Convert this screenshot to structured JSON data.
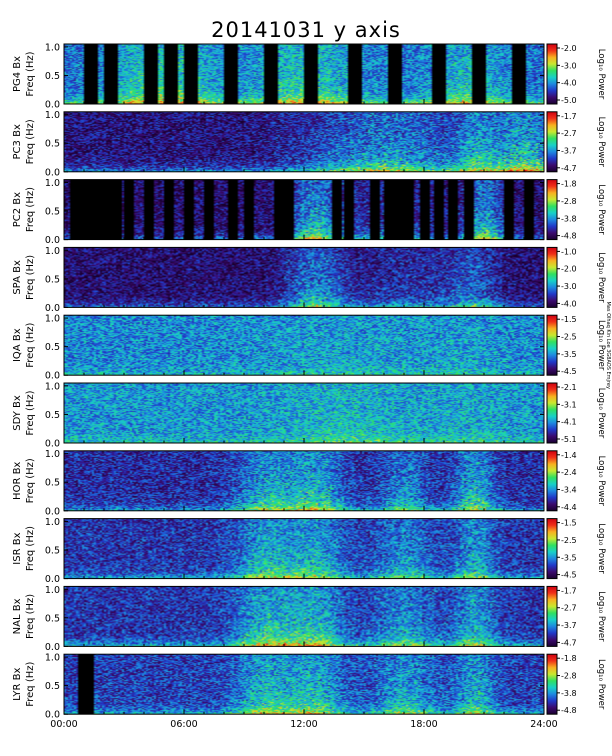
{
  "chart_data": {
    "type": "heatmap",
    "title": "20141031  y axis",
    "x_axis": {
      "ticks": [
        "00:00",
        "06:00",
        "12:00",
        "18:00",
        "24:00"
      ],
      "tick_hours": [
        0,
        6,
        12,
        18,
        24
      ],
      "range_hours": [
        0,
        24
      ]
    },
    "y_axis": {
      "ticks": [
        "0.0",
        "0.5",
        "1.0"
      ],
      "range": [
        0,
        1.05
      ],
      "unit": "Freq (Hz)"
    },
    "colorbar_label": "Log₁₀ Power",
    "colormap": [
      "#1a0030",
      "#3b0a6e",
      "#2038c8",
      "#1e88e0",
      "#18d0c8",
      "#30e060",
      "#c8e830",
      "#f8b020",
      "#f03018",
      "#d00010"
    ],
    "panels": [
      {
        "station": "PG4",
        "ylabel": "PG4 Bx",
        "freq_label": "Freq (Hz)",
        "cb_ticks": [
          "-2.0",
          "-3.0",
          "-4.0",
          "-5.0"
        ],
        "base": 0.3,
        "bursts": [
          [
            5,
            2.5,
            0.3
          ],
          [
            12,
            2.5,
            0.25
          ],
          [
            20,
            2,
            0.2
          ]
        ],
        "low_boost": 0.35,
        "gaps": [
          1.0,
          2.0,
          4.0,
          5.0,
          6.0,
          8.0,
          10.0,
          12.0,
          14.2,
          16.2,
          18.4,
          20.4,
          22.4
        ],
        "gap_w": 0.12
      },
      {
        "station": "PC3",
        "ylabel": "PC3 Bx",
        "freq_label": "Freq (Hz)",
        "cb_ticks": [
          "-1.7",
          "-2.7",
          "-3.7",
          "-4.7"
        ],
        "base": 0.12,
        "bursts": [
          [
            16,
            4,
            0.35
          ],
          [
            23,
            2,
            0.45
          ],
          [
            20.5,
            1,
            0.25
          ]
        ],
        "low_boost": 0.3,
        "gaps": [],
        "gap_w": 0
      },
      {
        "station": "PC2",
        "ylabel": "PC2 Bx",
        "freq_label": "Freq (Hz)",
        "cb_ticks": [
          "-1.8",
          "-2.8",
          "-3.8",
          "-4.8"
        ],
        "base": 0.1,
        "bursts": [
          [
            12.5,
            1.2,
            0.4
          ],
          [
            21,
            1.0,
            0.4
          ],
          [
            16,
            3,
            0.15
          ]
        ],
        "low_boost": 0.3,
        "gaps": [
          0.3,
          0.5,
          0.7,
          1.0,
          1.3,
          1.6,
          2.0,
          2.4,
          3.0,
          4.0,
          5.0,
          6.0,
          7.0,
          8.2,
          9.0,
          10.5,
          11.0,
          13.4,
          14.0,
          15.3,
          16.0,
          16.5,
          17.0,
          17.8,
          18.5,
          19.2,
          20.0,
          22.0,
          23.0
        ],
        "gap_w": 0.08
      },
      {
        "station": "SPA",
        "ylabel": "SPA Bx",
        "freq_label": "Freq (Hz)",
        "cb_ticks": [
          "-1.0",
          "-2.0",
          "-3.0",
          "-4.0"
        ],
        "base": 0.1,
        "bursts": [
          [
            12.5,
            1.5,
            0.35
          ],
          [
            17.5,
            3,
            0.15
          ],
          [
            20.5,
            1.2,
            0.22
          ]
        ],
        "low_boost": 0.25,
        "gaps": [],
        "gap_w": 0
      },
      {
        "station": "IQA",
        "ylabel": "IQA Bx",
        "freq_label": "Freq (Hz)",
        "cb_ticks": [
          "-1.5",
          "-2.5",
          "-3.5",
          "-4.5"
        ],
        "base": 0.34,
        "bursts": [
          [
            14,
            4,
            0.06
          ],
          [
            20,
            2,
            0.05
          ]
        ],
        "low_boost": 0.12,
        "gaps": [],
        "gap_w": 0
      },
      {
        "station": "SDY",
        "ylabel": "SDY Bx",
        "freq_label": "Freq (Hz)",
        "cb_ticks": [
          "-2.1",
          "-3.1",
          "-4.1",
          "-5.1"
        ],
        "base": 0.36,
        "bursts": [
          [
            14,
            3,
            0.1
          ],
          [
            20,
            2,
            0.06
          ]
        ],
        "low_boost": 0.15,
        "gaps": [],
        "gap_w": 0
      },
      {
        "station": "HOR",
        "ylabel": "HOR Bx",
        "freq_label": "Freq (Hz)",
        "cb_ticks": [
          "-1.4",
          "-2.4",
          "-3.4",
          "-4.4"
        ],
        "base": 0.18,
        "bursts": [
          [
            10,
            1.5,
            0.3
          ],
          [
            12.5,
            1.5,
            0.35
          ],
          [
            17,
            1.2,
            0.25
          ],
          [
            20.5,
            1,
            0.35
          ]
        ],
        "low_boost": 0.25,
        "gaps": [],
        "gap_w": 0
      },
      {
        "station": "ISR",
        "ylabel": "ISR Bx",
        "freq_label": "Freq (Hz)",
        "cb_ticks": [
          "-1.5",
          "-2.5",
          "-3.5",
          "-4.5"
        ],
        "base": 0.2,
        "bursts": [
          [
            10,
            1.5,
            0.3
          ],
          [
            12.5,
            1.5,
            0.3
          ],
          [
            17,
            1.5,
            0.22
          ],
          [
            20.5,
            1,
            0.28
          ]
        ],
        "low_boost": 0.25,
        "gaps": [],
        "gap_w": 0
      },
      {
        "station": "NAL",
        "ylabel": "NAL Bx",
        "freq_label": "Freq (Hz)",
        "cb_ticks": [
          "-1.7",
          "-2.7",
          "-3.7",
          "-4.7"
        ],
        "base": 0.2,
        "bursts": [
          [
            10,
            1.5,
            0.35
          ],
          [
            12.5,
            1.5,
            0.35
          ],
          [
            17,
            1.5,
            0.25
          ],
          [
            20.5,
            1,
            0.3
          ]
        ],
        "low_boost": 0.3,
        "gaps": [],
        "gap_w": 0
      },
      {
        "station": "LYR",
        "ylabel": "LYR Bx",
        "freq_label": "Freq (Hz)",
        "cb_ticks": [
          "-1.8",
          "-2.8",
          "-3.8",
          "-4.8"
        ],
        "base": 0.22,
        "bursts": [
          [
            10,
            1.5,
            0.3
          ],
          [
            12.5,
            1.5,
            0.3
          ],
          [
            17,
            1.5,
            0.25
          ],
          [
            20.5,
            1,
            0.28
          ]
        ],
        "low_boost": 0.25,
        "gaps": [
          0.65,
          0.78
        ],
        "gap_w": 0.12
      }
    ],
    "side_note": "Mas Olhaq Kin Loe 3G8AOS Emjrey"
  }
}
